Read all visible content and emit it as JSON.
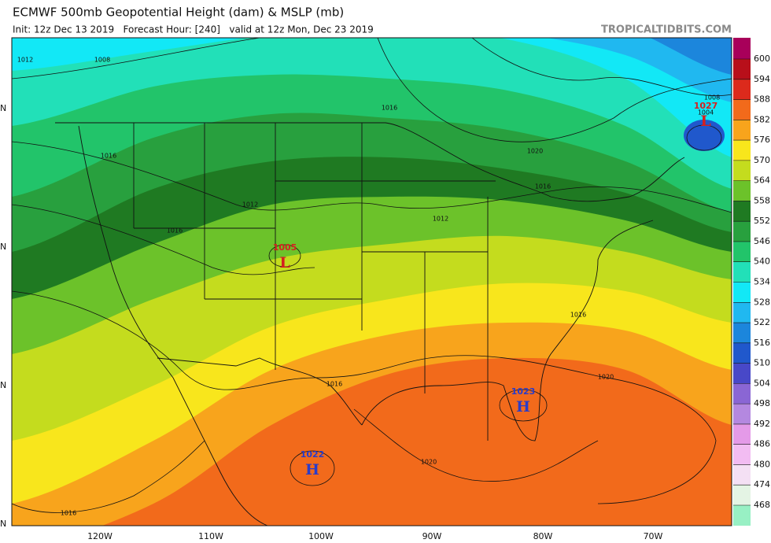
{
  "header": {
    "title": "ECMWF 500mb Geopotential Height (dam) & MSLP (mb)",
    "subtitle": "Init: 12z Dec 13 2019   Forecast Hour: [240]   valid at 12z Mon, Dec 23 2019",
    "credit": "TROPICALTIDBITS.COM"
  },
  "colorbar": {
    "ticks": [
      600,
      594,
      588,
      582,
      576,
      570,
      564,
      558,
      552,
      546,
      540,
      534,
      528,
      522,
      516,
      510,
      504,
      498,
      492,
      486,
      480,
      474,
      468
    ],
    "colors": [
      "#a8005a",
      "#b80f1a",
      "#dc2a1c",
      "#f26a1b",
      "#f8a41c",
      "#f8e61c",
      "#c4dc1e",
      "#6cc22a",
      "#1f7a22",
      "#28a03e",
      "#22c46a",
      "#22e0b8",
      "#12e8f6",
      "#20b8f0",
      "#1c86dc",
      "#2058cc",
      "#4848c8",
      "#8a66d4",
      "#b488e0",
      "#e49ae8",
      "#f2bcf2",
      "#f4e0f4",
      "#e4f4e4",
      "#98f0c4"
    ]
  },
  "map": {
    "longitude_labels": [
      "120W",
      "110W",
      "100W",
      "90W",
      "80W",
      "70W"
    ],
    "latitude_labels": [
      "N",
      "N",
      "N",
      "N"
    ],
    "isobar_labels": [
      "1012",
      "1008",
      "1016",
      "1020",
      "1016",
      "1016",
      "1012",
      "1012",
      "1016",
      "1016",
      "1016",
      "1020",
      "1020",
      "1016",
      "1008",
      "1004"
    ],
    "pressure_centers": [
      {
        "value": "1027",
        "letter": "L",
        "color": "#d42020"
      },
      {
        "value": "1005",
        "letter": "L",
        "color": "#d42020"
      },
      {
        "value": "1023",
        "letter": "H",
        "color": "#2a3cc8"
      },
      {
        "value": "1022",
        "letter": "H",
        "color": "#2a3cc8"
      }
    ]
  }
}
